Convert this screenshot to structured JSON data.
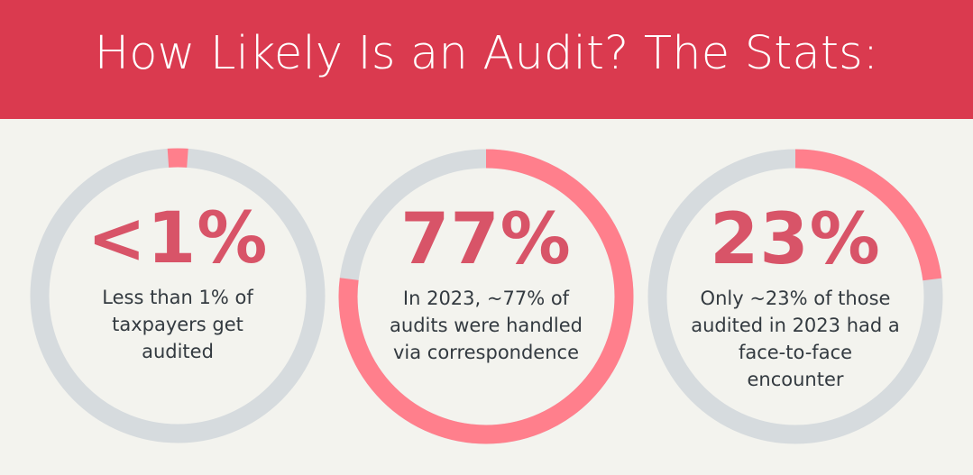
{
  "header": {
    "title": "How Likely Is an Audit? The Stats:"
  },
  "colors": {
    "header_bg": "#DA3A4F",
    "background": "#F3F3EE",
    "ring_track": "#D6DBDE",
    "ring_fill": "#FF7F8C",
    "stat_value": "#D85468",
    "body_text": "#333A40"
  },
  "stats": [
    {
      "value": "<1%",
      "percent": 1,
      "description": "Less than 1% of taxpayers get audited"
    },
    {
      "value": "77%",
      "percent": 77,
      "description": "In 2023, ~77% of audits were handled via correspondence"
    },
    {
      "value": "23%",
      "percent": 23,
      "description": "Only ~23% of those audited in 2023 had a face-to-face encounter"
    }
  ],
  "chart_data": {
    "type": "pie",
    "title": "How Likely Is an Audit? The Stats:",
    "subtype": "donut-progress",
    "series": [
      {
        "name": "Taxpayers audited",
        "label": "<1%",
        "value": 1,
        "remainder": 99,
        "caption": "Less than 1% of taxpayers get audited"
      },
      {
        "name": "Audits handled via correspondence (2023)",
        "label": "77%",
        "value": 77,
        "remainder": 23,
        "caption": "In 2023, ~77% of audits were handled via correspondence"
      },
      {
        "name": "Audits with face-to-face encounter (2023)",
        "label": "23%",
        "value": 23,
        "remainder": 77,
        "caption": "Only ~23% of those audited in 2023 had a face-to-face encounter"
      }
    ],
    "legend": "none"
  }
}
